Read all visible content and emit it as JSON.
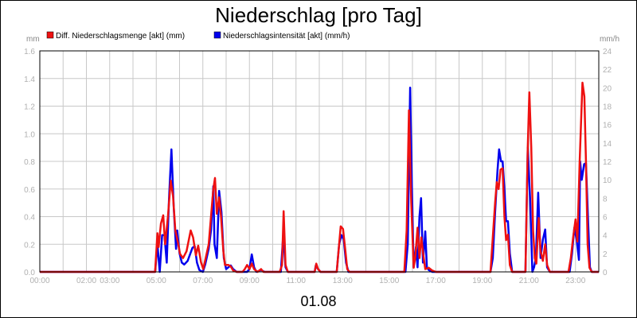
{
  "chart_data": {
    "type": "line",
    "title": "Niederschlag [pro Tag]",
    "date_label": "01.08",
    "y_left_unit": "mm",
    "y_right_unit": "mm/h",
    "ylim_left": [
      0,
      1.6
    ],
    "ylim_right": [
      0,
      24
    ],
    "y_left_ticks": [
      "0.0",
      "0.2",
      "0.4",
      "0.6",
      "0.8",
      "1.0",
      "1.2",
      "1.4",
      "1.6"
    ],
    "y_right_ticks": [
      "0",
      "2",
      "4",
      "6",
      "8",
      "10",
      "12",
      "14",
      "16",
      "18",
      "20",
      "22",
      "24"
    ],
    "x_range_hours": [
      0,
      24
    ],
    "x_ticks": [
      {
        "h": 0,
        "label": "00:00"
      },
      {
        "h": 2,
        "label": "02:00"
      },
      {
        "h": 3,
        "label": "03:00"
      },
      {
        "h": 5,
        "label": "05:00"
      },
      {
        "h": 7,
        "label": "07:00"
      },
      {
        "h": 9,
        "label": "09:00"
      },
      {
        "h": 11,
        "label": "11:00"
      },
      {
        "h": 13,
        "label": "13:00"
      },
      {
        "h": 15,
        "label": "15:00"
      },
      {
        "h": 17,
        "label": "17:00"
      },
      {
        "h": 19,
        "label": "19:00"
      },
      {
        "h": 21,
        "label": "21:00"
      },
      {
        "h": 23,
        "label": "23:00"
      }
    ],
    "grid": true,
    "legend_position": "top-left",
    "series": [
      {
        "name": "Niederschlagsintensität [akt] (mm/h)",
        "color": "#0000ee",
        "axis": "right",
        "points": [
          [
            0,
            0
          ],
          [
            4.95,
            0
          ],
          [
            5.05,
            3
          ],
          [
            5.15,
            0
          ],
          [
            5.25,
            4
          ],
          [
            5.35,
            4
          ],
          [
            5.45,
            1
          ],
          [
            5.55,
            8
          ],
          [
            5.65,
            13.3
          ],
          [
            5.75,
            7
          ],
          [
            5.85,
            2.5
          ],
          [
            5.9,
            4.5
          ],
          [
            6.0,
            2
          ],
          [
            6.1,
            1
          ],
          [
            6.2,
            0.8
          ],
          [
            6.35,
            1.2
          ],
          [
            6.55,
            2.6
          ],
          [
            6.65,
            2.8
          ],
          [
            6.75,
            1
          ],
          [
            6.85,
            0.2
          ],
          [
            7.0,
            0
          ],
          [
            7.1,
            0.8
          ],
          [
            7.25,
            2.5
          ],
          [
            7.35,
            4.5
          ],
          [
            7.45,
            9.3
          ],
          [
            7.5,
            3
          ],
          [
            7.6,
            1.5
          ],
          [
            7.7,
            8.8
          ],
          [
            7.8,
            6.5
          ],
          [
            7.9,
            1.5
          ],
          [
            8.0,
            0.3
          ],
          [
            8.1,
            0.5
          ],
          [
            8.2,
            0.7
          ],
          [
            8.3,
            0.3
          ],
          [
            8.45,
            0
          ],
          [
            8.9,
            0
          ],
          [
            9.0,
            0.3
          ],
          [
            9.1,
            1.9
          ],
          [
            9.2,
            0.5
          ],
          [
            9.3,
            0
          ],
          [
            9.5,
            0.2
          ],
          [
            9.65,
            0
          ],
          [
            10.35,
            0
          ],
          [
            10.45,
            4
          ],
          [
            10.55,
            0.5
          ],
          [
            10.65,
            0
          ],
          [
            11.8,
            0
          ],
          [
            11.85,
            0.7
          ],
          [
            11.95,
            0.3
          ],
          [
            12.05,
            0
          ],
          [
            12.75,
            0
          ],
          [
            12.85,
            3
          ],
          [
            12.95,
            4
          ],
          [
            13.05,
            3.5
          ],
          [
            13.15,
            1
          ],
          [
            13.25,
            0
          ],
          [
            15.7,
            0
          ],
          [
            15.8,
            3
          ],
          [
            15.9,
            20
          ],
          [
            15.97,
            10
          ],
          [
            16.05,
            0.5
          ],
          [
            16.15,
            2.7
          ],
          [
            16.22,
            0.5
          ],
          [
            16.3,
            6
          ],
          [
            16.37,
            8
          ],
          [
            16.45,
            1
          ],
          [
            16.55,
            4.4
          ],
          [
            16.62,
            0.5
          ],
          [
            16.7,
            0.2
          ],
          [
            16.85,
            0
          ],
          [
            19.2,
            0
          ],
          [
            19.35,
            0
          ],
          [
            19.45,
            1.5
          ],
          [
            19.55,
            6.5
          ],
          [
            19.65,
            11
          ],
          [
            19.72,
            13.3
          ],
          [
            19.8,
            12
          ],
          [
            19.87,
            12
          ],
          [
            19.95,
            9
          ],
          [
            20.02,
            5.5
          ],
          [
            20.1,
            5.5
          ],
          [
            20.18,
            2
          ],
          [
            20.28,
            0
          ],
          [
            20.85,
            0
          ],
          [
            20.95,
            13.5
          ],
          [
            21.05,
            8
          ],
          [
            21.15,
            0
          ],
          [
            21.22,
            0.5
          ],
          [
            21.3,
            1.5
          ],
          [
            21.4,
            8.6
          ],
          [
            21.5,
            1.5
          ],
          [
            21.6,
            3.5
          ],
          [
            21.7,
            4.6
          ],
          [
            21.78,
            0.5
          ],
          [
            21.9,
            0
          ],
          [
            22.75,
            0
          ],
          [
            22.85,
            2
          ],
          [
            22.95,
            4.8
          ],
          [
            23.05,
            3.5
          ],
          [
            23.15,
            1.3
          ],
          [
            23.2,
            12
          ],
          [
            23.27,
            10
          ],
          [
            23.37,
            11.7
          ],
          [
            23.45,
            11.8
          ],
          [
            23.55,
            5
          ],
          [
            23.62,
            0.5
          ],
          [
            23.7,
            0
          ],
          [
            24,
            0
          ]
        ]
      },
      {
        "name": "Diff. Niederschlagsmenge [akt] (mm)",
        "color": "#ee1111",
        "axis": "left",
        "points": [
          [
            0,
            0
          ],
          [
            4.95,
            0
          ],
          [
            5.05,
            0.28
          ],
          [
            5.1,
            0.18
          ],
          [
            5.2,
            0.35
          ],
          [
            5.3,
            0.41
          ],
          [
            5.38,
            0.2
          ],
          [
            5.5,
            0.4
          ],
          [
            5.62,
            0.66
          ],
          [
            5.72,
            0.55
          ],
          [
            5.82,
            0.3
          ],
          [
            5.92,
            0.22
          ],
          [
            6.02,
            0.13
          ],
          [
            6.15,
            0.1
          ],
          [
            6.3,
            0.15
          ],
          [
            6.48,
            0.3
          ],
          [
            6.58,
            0.25
          ],
          [
            6.7,
            0.12
          ],
          [
            6.8,
            0.19
          ],
          [
            6.92,
            0.07
          ],
          [
            7.02,
            0.02
          ],
          [
            7.12,
            0.1
          ],
          [
            7.25,
            0.2
          ],
          [
            7.35,
            0.4
          ],
          [
            7.45,
            0.6
          ],
          [
            7.52,
            0.68
          ],
          [
            7.6,
            0.42
          ],
          [
            7.7,
            0.54
          ],
          [
            7.78,
            0.4
          ],
          [
            7.88,
            0.15
          ],
          [
            7.95,
            0.05
          ],
          [
            8.1,
            0.05
          ],
          [
            8.2,
            0.04
          ],
          [
            8.3,
            0.01
          ],
          [
            8.45,
            0
          ],
          [
            8.7,
            0
          ],
          [
            8.8,
            0.02
          ],
          [
            8.9,
            0.05
          ],
          [
            9.0,
            0.02
          ],
          [
            9.1,
            0.06
          ],
          [
            9.2,
            0.02
          ],
          [
            9.35,
            0
          ],
          [
            9.5,
            0.02
          ],
          [
            9.6,
            0
          ],
          [
            10.3,
            0
          ],
          [
            10.4,
            0.05
          ],
          [
            10.47,
            0.44
          ],
          [
            10.55,
            0.05
          ],
          [
            10.65,
            0
          ],
          [
            11.8,
            0
          ],
          [
            11.87,
            0.06
          ],
          [
            11.95,
            0.02
          ],
          [
            12.05,
            0
          ],
          [
            12.75,
            0
          ],
          [
            12.85,
            0.2
          ],
          [
            12.92,
            0.33
          ],
          [
            13.02,
            0.31
          ],
          [
            13.12,
            0.15
          ],
          [
            13.2,
            0.02
          ],
          [
            13.3,
            0
          ],
          [
            15.65,
            0
          ],
          [
            15.75,
            0.3
          ],
          [
            15.85,
            1.17
          ],
          [
            15.95,
            0.5
          ],
          [
            16.05,
            0.03
          ],
          [
            16.12,
            0.1
          ],
          [
            16.22,
            0.32
          ],
          [
            16.3,
            0.1
          ],
          [
            16.38,
            0.25
          ],
          [
            16.47,
            0.12
          ],
          [
            16.55,
            0.02
          ],
          [
            16.7,
            0.03
          ],
          [
            16.85,
            0.01
          ],
          [
            17.0,
            0
          ],
          [
            19.2,
            0
          ],
          [
            19.35,
            0
          ],
          [
            19.45,
            0.25
          ],
          [
            19.55,
            0.5
          ],
          [
            19.62,
            0.65
          ],
          [
            19.7,
            0.6
          ],
          [
            19.78,
            0.74
          ],
          [
            19.87,
            0.75
          ],
          [
            19.95,
            0.4
          ],
          [
            20.02,
            0.23
          ],
          [
            20.1,
            0.27
          ],
          [
            20.18,
            0.05
          ],
          [
            20.28,
            0
          ],
          [
            20.85,
            0
          ],
          [
            20.95,
            0.9
          ],
          [
            21.02,
            1.3
          ],
          [
            21.1,
            0.9
          ],
          [
            21.18,
            0.3
          ],
          [
            21.25,
            0.1
          ],
          [
            21.32,
            0.06
          ],
          [
            21.42,
            0.39
          ],
          [
            21.5,
            0.15
          ],
          [
            21.6,
            0.08
          ],
          [
            21.7,
            0.2
          ],
          [
            21.78,
            0.05
          ],
          [
            21.9,
            0
          ],
          [
            22.7,
            0
          ],
          [
            22.8,
            0.1
          ],
          [
            22.9,
            0.25
          ],
          [
            23.0,
            0.38
          ],
          [
            23.08,
            0.22
          ],
          [
            23.18,
            0.8
          ],
          [
            23.3,
            1.37
          ],
          [
            23.38,
            1.27
          ],
          [
            23.45,
            0.8
          ],
          [
            23.52,
            0.2
          ],
          [
            23.6,
            0.03
          ],
          [
            23.7,
            0
          ],
          [
            24,
            0
          ]
        ]
      }
    ],
    "legend": [
      {
        "label": "Diff. Niederschlagsmenge [akt] (mm)",
        "color": "#ee1111"
      },
      {
        "label": "Niederschlagsintensität [akt] (mm/h)",
        "color": "#0000ee"
      }
    ]
  }
}
